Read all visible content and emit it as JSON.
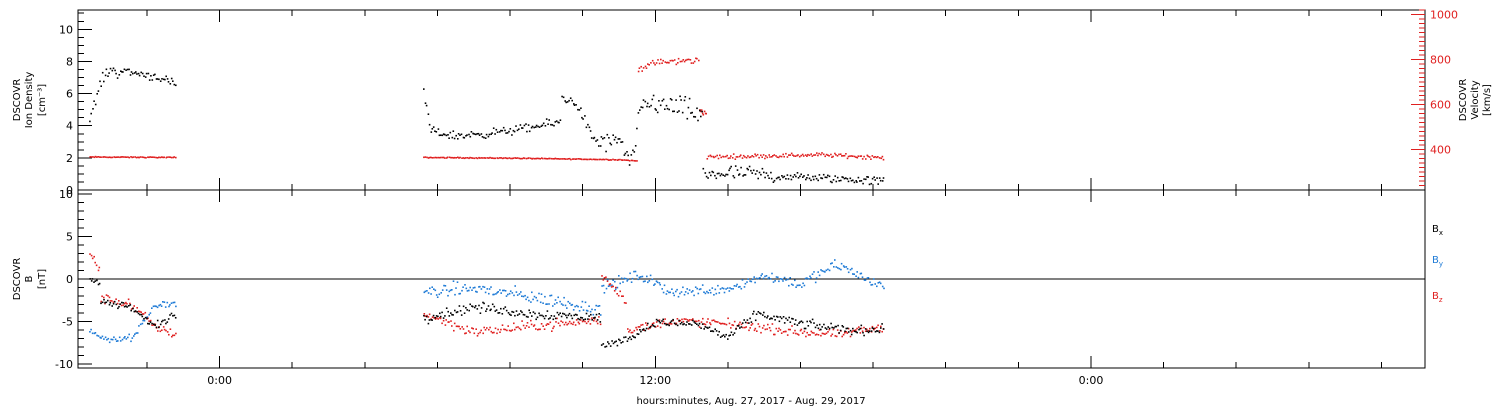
{
  "chart_data": [
    {
      "type": "scatter",
      "panel": "top",
      "ylabel_lines": [
        "DSCOVR",
        "Ion Density",
        "[cm⁻³]"
      ],
      "y2label_lines": [
        "DSCOVR",
        "Velocity",
        "[km/s]"
      ],
      "yticks": [
        "0",
        "2",
        "4",
        "6",
        "8",
        "10"
      ],
      "y2ticks": [
        "400",
        "600",
        "800",
        "1000"
      ],
      "ylim": [
        0,
        11.2
      ],
      "y2lim": [
        220,
        1020
      ],
      "colors": {
        "density": "#000000",
        "velocity": "#e02020"
      },
      "series": [
        {
          "name": "density",
          "segments": [
            {
              "t0": -3.6,
              "t1": -2.8,
              "levels": [
                [
                  -3.6,
                  4.2
                ],
                [
                  -3.3,
                  6.8
                ],
                [
                  -3.0,
                  7.6
                ],
                [
                  -2.8,
                  7.2
                ]
              ],
              "noise": 0.5
            },
            {
              "t0": -2.8,
              "t1": -1.2,
              "levels": [
                [
                  -2.8,
                  7.5
                ],
                [
                  -2.0,
                  7.2
                ],
                [
                  -1.6,
                  7.0
                ],
                [
                  -1.2,
                  6.5
                ]
              ],
              "noise": 0.4
            },
            {
              "t0": 5.6,
              "t1": 9.4,
              "levels": [
                [
                  5.6,
                  6.2
                ],
                [
                  5.8,
                  3.7
                ],
                [
                  6.5,
                  3.4
                ],
                [
                  7.5,
                  3.6
                ],
                [
                  8.5,
                  3.9
                ],
                [
                  9.4,
                  4.3
                ]
              ],
              "noise": 0.4
            },
            {
              "t0": 9.4,
              "t1": 10.3,
              "levels": [
                [
                  9.4,
                  5.8
                ],
                [
                  9.8,
                  5.5
                ],
                [
                  10.3,
                  3.1
                ]
              ],
              "noise": 0.5
            },
            {
              "t0": 10.3,
              "t1": 12.0,
              "levels": [
                [
                  10.3,
                  3.0
                ],
                [
                  11.0,
                  3.0
                ],
                [
                  11.3,
                  1.6
                ],
                [
                  11.6,
                  5.2
                ],
                [
                  12.0,
                  5.6
                ]
              ],
              "noise": 0.9
            },
            {
              "t0": 12.0,
              "t1": 13.3,
              "levels": [
                [
                  12.0,
                  5.4
                ],
                [
                  12.6,
                  5.2
                ],
                [
                  13.3,
                  4.6
                ]
              ],
              "noise": 1.1
            },
            {
              "t0": 13.3,
              "t1": 15.3,
              "levels": [
                [
                  13.3,
                  1.0
                ],
                [
                  14.0,
                  1.1
                ],
                [
                  15.0,
                  1.0
                ],
                [
                  15.3,
                  0.8
                ]
              ],
              "noise": 0.7
            },
            {
              "t0": 15.3,
              "t1": 18.3,
              "levels": [
                [
                  15.3,
                  0.9
                ],
                [
                  16.5,
                  0.8
                ],
                [
                  18.3,
                  0.6
                ]
              ],
              "noise": 0.4
            }
          ]
        },
        {
          "name": "velocity",
          "segments": [
            {
              "t0": -3.6,
              "t1": -1.2,
              "levels": [
                [
                  -3.6,
                  370
                ],
                [
                  -1.2,
                  368
                ]
              ],
              "noise": 3
            },
            {
              "t0": 5.6,
              "t1": 11.5,
              "levels": [
                [
                  5.6,
                  368
                ],
                [
                  8.0,
                  365
                ],
                [
                  11.0,
                  358
                ],
                [
                  11.5,
                  352
                ]
              ],
              "noise": 3
            },
            {
              "t0": 11.5,
              "t1": 13.2,
              "levels": [
                [
                  11.5,
                  760
                ],
                [
                  12.0,
                  790
                ],
                [
                  13.2,
                  800
                ]
              ],
              "noise": 22
            },
            {
              "t0": 13.2,
              "t1": 13.4,
              "levels": [
                [
                  13.2,
                  580
                ],
                [
                  13.4,
                  560
                ]
              ],
              "noise": 20
            },
            {
              "t0": 13.4,
              "t1": 18.3,
              "levels": [
                [
                  13.4,
                  370
                ],
                [
                  15.0,
                  375
                ],
                [
                  16.5,
                  380
                ],
                [
                  18.3,
                  368
                ]
              ],
              "noise": 14
            }
          ]
        }
      ]
    },
    {
      "type": "scatter",
      "panel": "bottom",
      "ylabel_lines": [
        "DSCOVR",
        "B",
        "[nT]"
      ],
      "yticks": [
        "-10",
        "-5",
        "0",
        "5",
        "10"
      ],
      "ylim": [
        -10.5,
        10.5
      ],
      "zero_line": true,
      "legend": [
        {
          "label": "B",
          "sub": "x",
          "color": "#000000"
        },
        {
          "label": "B",
          "sub": "y",
          "color": "#1f7bd6"
        },
        {
          "label": "B",
          "sub": "z",
          "color": "#e02020"
        }
      ],
      "series": [
        {
          "name": "Bx",
          "segments": [
            {
              "t0": -3.6,
              "t1": -3.3,
              "levels": [
                [
                  -3.6,
                  0.2
                ],
                [
                  -3.3,
                  -0.5
                ]
              ],
              "noise": 0.5
            },
            {
              "t0": -3.3,
              "t1": -1.2,
              "levels": [
                [
                  -3.3,
                  -2.6
                ],
                [
                  -2.5,
                  -3.2
                ],
                [
                  -1.8,
                  -5.5
                ],
                [
                  -1.2,
                  -4.0
                ]
              ],
              "noise": 0.7
            },
            {
              "t0": 5.6,
              "t1": 10.5,
              "levels": [
                [
                  5.6,
                  -4.5
                ],
                [
                  7.0,
                  -3.2
                ],
                [
                  8.5,
                  -4.0
                ],
                [
                  10.5,
                  -4.5
                ]
              ],
              "noise": 0.9
            },
            {
              "t0": 10.5,
              "t1": 13.0,
              "levels": [
                [
                  10.5,
                  -7.8
                ],
                [
                  11.2,
                  -7.0
                ],
                [
                  12.0,
                  -5.0
                ],
                [
                  13.0,
                  -5.2
                ]
              ],
              "noise": 0.6
            },
            {
              "t0": 13.0,
              "t1": 18.3,
              "levels": [
                [
                  13.0,
                  -5.0
                ],
                [
                  14.0,
                  -6.8
                ],
                [
                  14.8,
                  -4.0
                ],
                [
                  16.0,
                  -5.2
                ],
                [
                  17.5,
                  -6.0
                ],
                [
                  18.3,
                  -5.8
                ]
              ],
              "noise": 0.8
            }
          ]
        },
        {
          "name": "By",
          "segments": [
            {
              "t0": -3.6,
              "t1": -1.2,
              "levels": [
                [
                  -3.6,
                  -6.0
                ],
                [
                  -3.0,
                  -7.2
                ],
                [
                  -2.4,
                  -6.8
                ],
                [
                  -1.8,
                  -3.0
                ],
                [
                  -1.2,
                  -2.8
                ]
              ],
              "noise": 0.6
            },
            {
              "t0": 5.6,
              "t1": 10.5,
              "levels": [
                [
                  5.6,
                  -1.5
                ],
                [
                  7.0,
                  -1.0
                ],
                [
                  8.5,
                  -2.0
                ],
                [
                  10.5,
                  -3.5
                ]
              ],
              "noise": 1.2
            },
            {
              "t0": 10.5,
              "t1": 18.3,
              "levels": [
                [
                  10.5,
                  -1.0
                ],
                [
                  11.5,
                  0.5
                ],
                [
                  12.5,
                  -1.5
                ],
                [
                  14.0,
                  -1.0
                ],
                [
                  15.0,
                  0.5
                ],
                [
                  16.0,
                  -0.5
                ],
                [
                  17.0,
                  1.8
                ],
                [
                  18.3,
                  -1.0
                ]
              ],
              "noise": 1.0
            }
          ]
        },
        {
          "name": "Bz",
          "segments": [
            {
              "t0": -3.6,
              "t1": -3.3,
              "levels": [
                [
                  -3.6,
                  3.2
                ],
                [
                  -3.3,
                  1.0
                ]
              ],
              "noise": 0.8
            },
            {
              "t0": -3.3,
              "t1": -1.2,
              "levels": [
                [
                  -3.3,
                  -2.2
                ],
                [
                  -2.5,
                  -2.8
                ],
                [
                  -1.8,
                  -5.5
                ],
                [
                  -1.2,
                  -6.5
                ]
              ],
              "noise": 0.8
            },
            {
              "t0": 5.6,
              "t1": 10.5,
              "levels": [
                [
                  5.6,
                  -4.0
                ],
                [
                  7.0,
                  -6.2
                ],
                [
                  8.5,
                  -5.5
                ],
                [
                  10.5,
                  -4.8
                ]
              ],
              "noise": 0.9
            },
            {
              "t0": 10.5,
              "t1": 11.2,
              "levels": [
                [
                  10.5,
                  0.5
                ],
                [
                  11.2,
                  -2.5
                ]
              ],
              "noise": 0.8
            },
            {
              "t0": 11.2,
              "t1": 18.3,
              "levels": [
                [
                  11.2,
                  -6.0
                ],
                [
                  12.5,
                  -4.8
                ],
                [
                  14.0,
                  -5.2
                ],
                [
                  15.5,
                  -6.0
                ],
                [
                  17.0,
                  -6.5
                ],
                [
                  18.3,
                  -5.5
                ]
              ],
              "noise": 0.8
            }
          ]
        }
      ]
    }
  ],
  "x_axis": {
    "label": "hours:minutes, Aug. 27, 2017 - Aug. 29, 2017",
    "major_ticks": [
      {
        "t": 0,
        "label": "0:00"
      },
      {
        "t": 12,
        "label": "12:00"
      },
      {
        "t": 24,
        "label": "0:00"
      }
    ],
    "xlim": [
      -3.9,
      33.2
    ],
    "minor_step_hours": 2
  }
}
